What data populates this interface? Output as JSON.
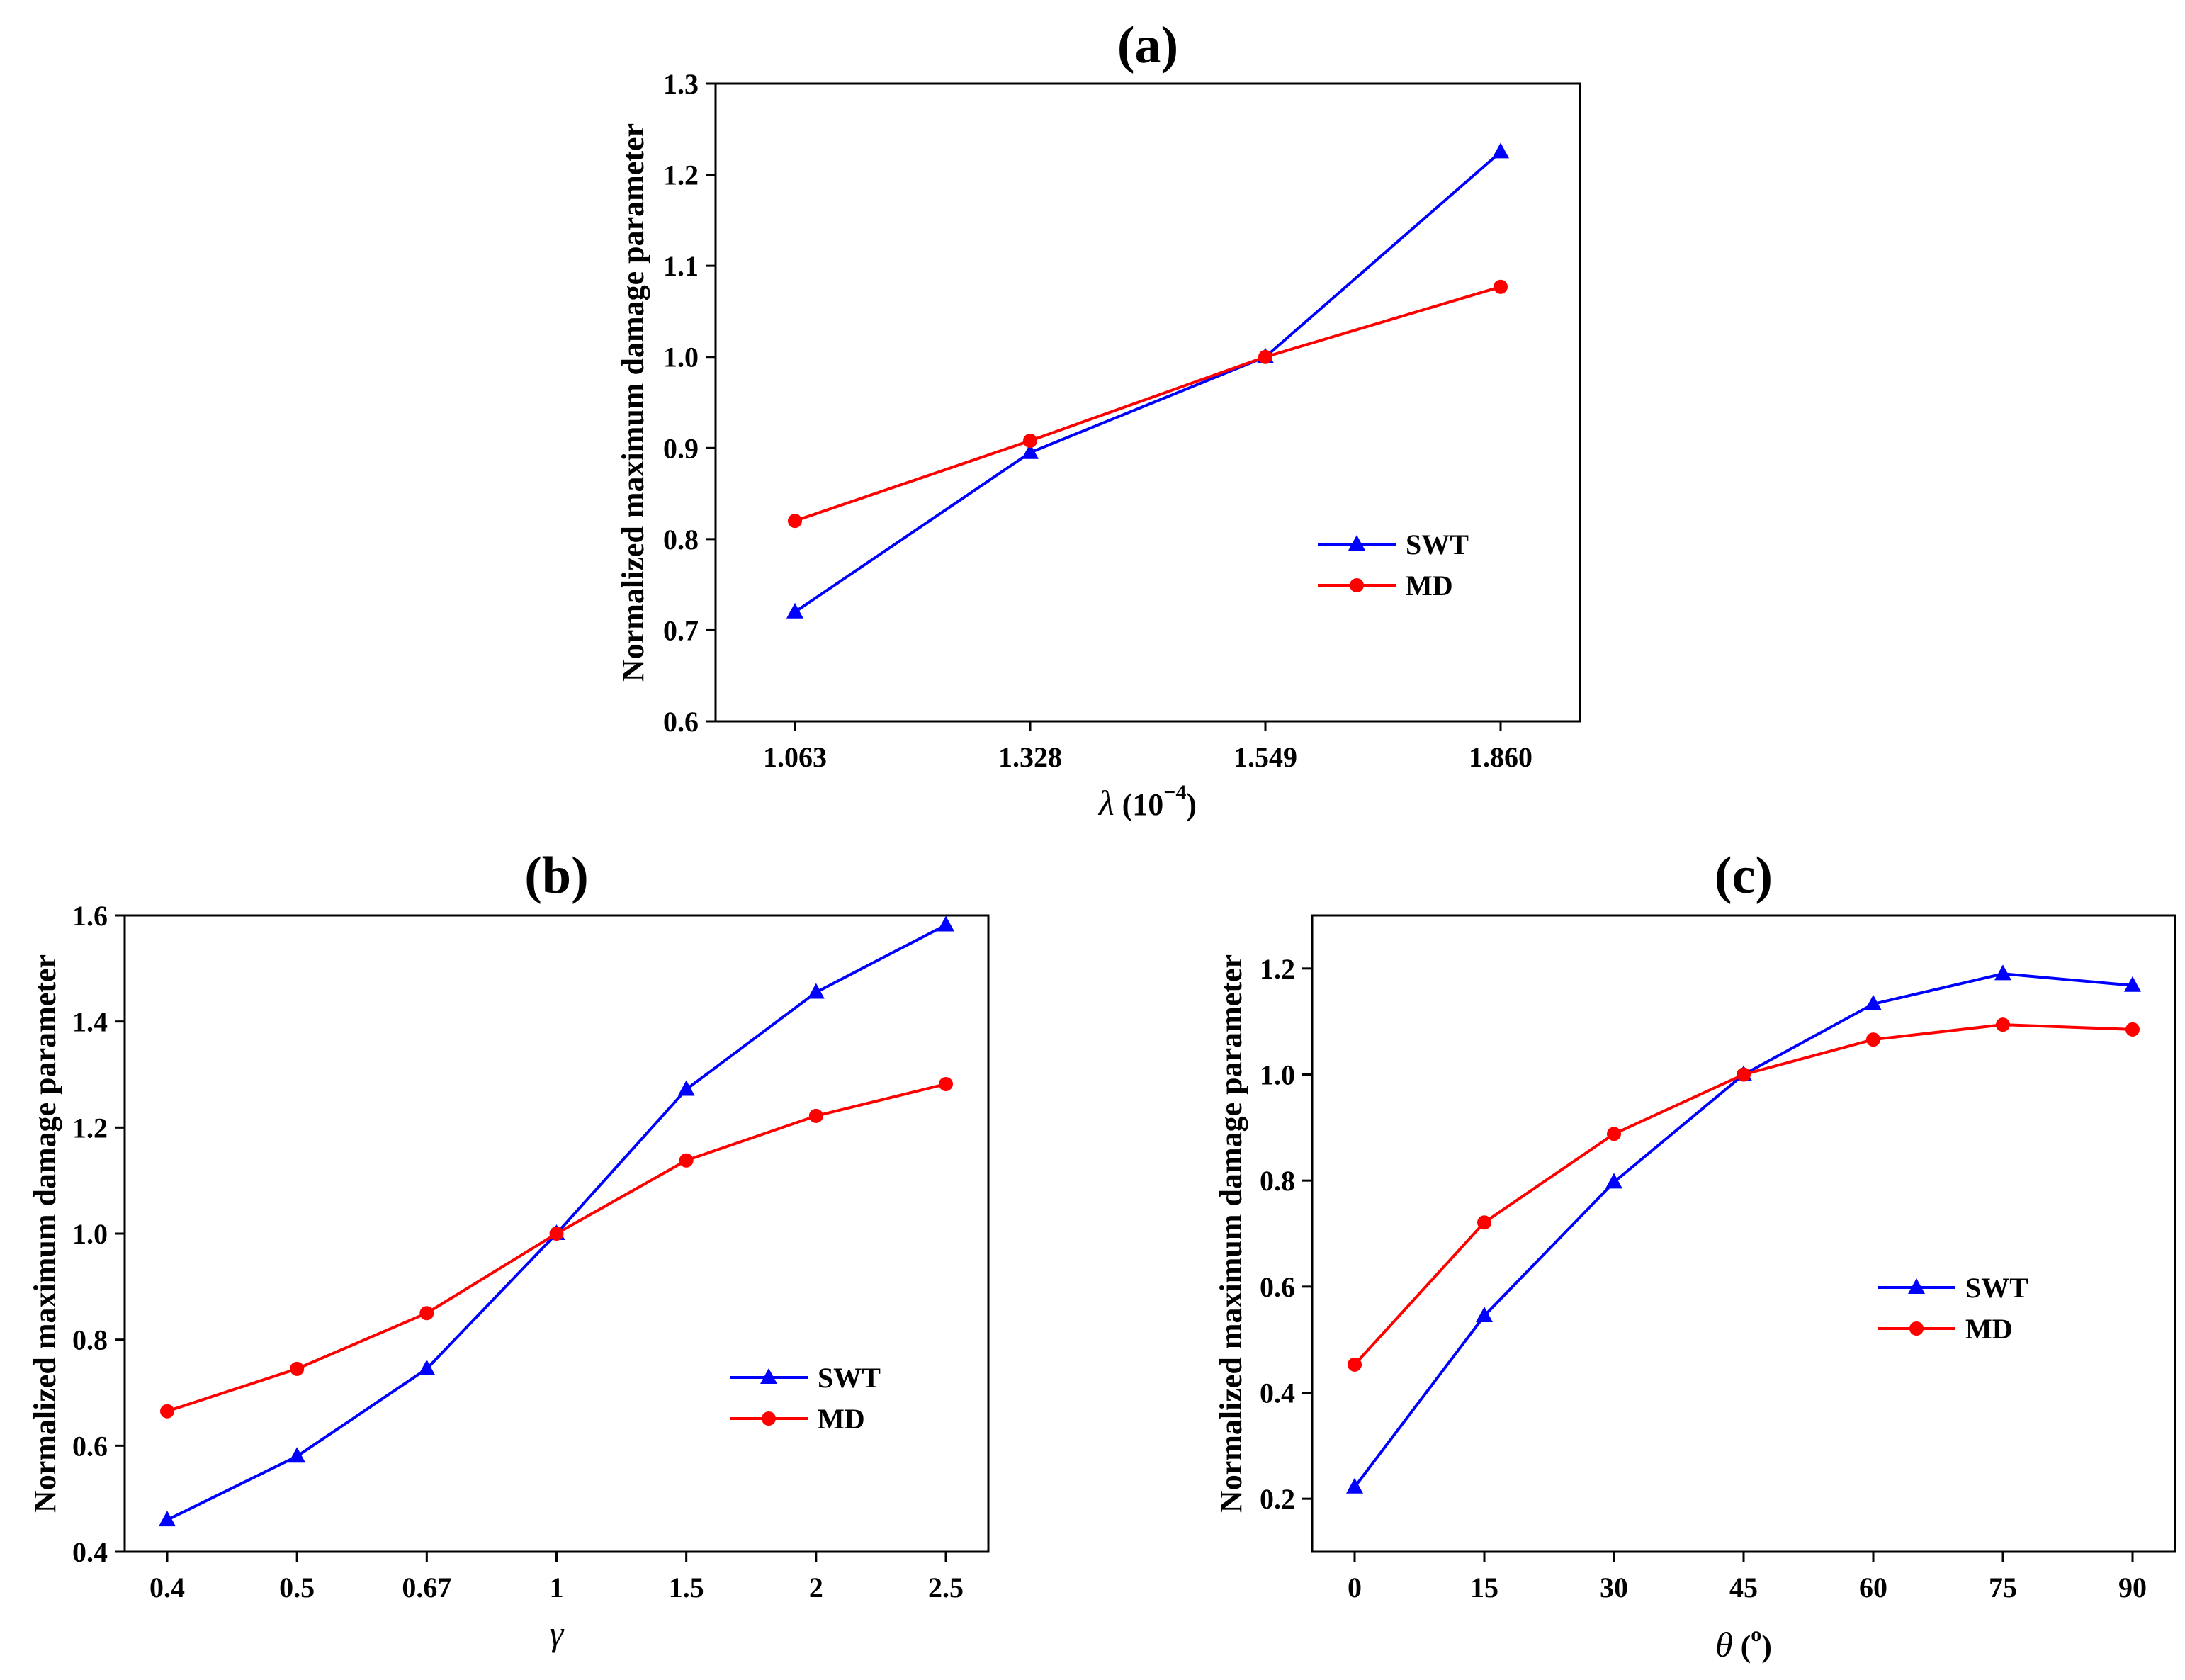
{
  "chart_data": [
    {
      "type": "line",
      "panel": "(a)",
      "title": "(a)",
      "xlabel": "λ (10⁻⁴)",
      "xlabel_var": "λ",
      "xlabel_unit": " (10",
      "xlabel_exp": "−4",
      "xlabel_close": ")",
      "ylabel": "Normalized maximum damage parameter",
      "categories": [
        "1.063",
        "1.328",
        "1.549",
        "1.860"
      ],
      "ylim": [
        0.6,
        1.3
      ],
      "yticks": [
        0.6,
        0.7,
        0.8,
        0.9,
        1.0,
        1.1,
        1.2,
        1.3
      ],
      "ytick_labels": [
        "0.6",
        "0.7",
        "0.8",
        "0.9",
        "1.0",
        "1.1",
        "1.2",
        "1.3"
      ],
      "legend_position": "lower-right",
      "series": [
        {
          "name": "SWT",
          "color": "#0000ff",
          "marker": "triangle",
          "values": [
            0.72,
            0.895,
            1.0,
            1.225
          ]
        },
        {
          "name": "MD",
          "color": "#ff0000",
          "marker": "circle",
          "values": [
            0.82,
            0.908,
            1.0,
            1.077
          ]
        }
      ]
    },
    {
      "type": "line",
      "panel": "(b)",
      "title": "(b)",
      "xlabel": "γ",
      "xlabel_var": "γ",
      "ylabel": "Normalized maximum damage parameter",
      "categories": [
        "0.4",
        "0.5",
        "0.67",
        "1",
        "1.5",
        "2",
        "2.5"
      ],
      "ylim": [
        0.4,
        1.6
      ],
      "yticks": [
        0.4,
        0.6,
        0.8,
        1.0,
        1.2,
        1.4,
        1.6
      ],
      "ytick_labels": [
        "0.4",
        "0.6",
        "0.8",
        "1.0",
        "1.2",
        "1.4",
        "1.6"
      ],
      "legend_position": "lower-right",
      "series": [
        {
          "name": "SWT",
          "color": "#0000ff",
          "marker": "triangle",
          "values": [
            0.46,
            0.58,
            0.745,
            1.0,
            1.272,
            1.455,
            1.582
          ]
        },
        {
          "name": "MD",
          "color": "#ff0000",
          "marker": "circle",
          "values": [
            0.665,
            0.745,
            0.85,
            1.0,
            1.138,
            1.222,
            1.282
          ]
        }
      ]
    },
    {
      "type": "line",
      "panel": "(c)",
      "title": "(c)",
      "xlabel": "θ (°)",
      "xlabel_var": "θ",
      "xlabel_unit": " (",
      "xlabel_exp": "o",
      "xlabel_close": ")",
      "ylabel": "Normalized maximum damage parameter",
      "categories": [
        "0",
        "15",
        "30",
        "45",
        "60",
        "75",
        "90"
      ],
      "ylim": [
        0.1,
        1.3
      ],
      "yticks": [
        0.2,
        0.4,
        0.6,
        0.8,
        1.0,
        1.2
      ],
      "ytick_labels": [
        "0.2",
        "0.4",
        "0.6",
        "0.8",
        "1.0",
        "1.2"
      ],
      "legend_position": "center-right",
      "series": [
        {
          "name": "SWT",
          "color": "#0000ff",
          "marker": "triangle",
          "values": [
            0.222,
            0.545,
            0.797,
            1.0,
            1.133,
            1.19,
            1.168
          ]
        },
        {
          "name": "MD",
          "color": "#ff0000",
          "marker": "circle",
          "values": [
            0.453,
            0.721,
            0.888,
            1.0,
            1.066,
            1.094,
            1.085
          ]
        }
      ]
    }
  ]
}
